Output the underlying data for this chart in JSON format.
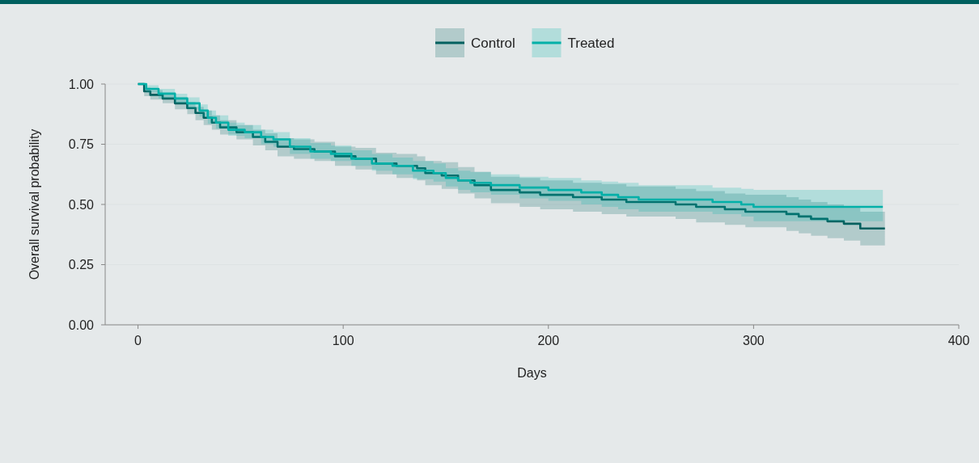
{
  "chart_data": {
    "type": "step",
    "xlabel": "Days",
    "ylabel": "Overall survival probability",
    "xlim": [
      -16,
      400
    ],
    "xticks": [
      0,
      100,
      200,
      300,
      400
    ],
    "ylim": [
      0,
      1
    ],
    "yticks": [
      {
        "value": 0,
        "label": "0.00"
      },
      {
        "value": 0.25,
        "label": "0.25"
      },
      {
        "value": 0.5,
        "label": "0.50"
      },
      {
        "value": 0.75,
        "label": "0.75"
      },
      {
        "value": 1,
        "label": "1.00"
      }
    ],
    "grid": "y",
    "legend": "top",
    "series": [
      {
        "name": "Control",
        "color": "#00605f",
        "x": [
          0,
          3,
          6,
          12,
          18,
          24,
          28,
          32,
          36,
          40,
          48,
          56,
          62,
          68,
          76,
          86,
          96,
          106,
          116,
          126,
          136,
          140,
          148,
          156,
          164,
          172,
          186,
          196,
          212,
          226,
          238,
          262,
          272,
          286,
          296,
          316,
          322,
          328,
          336,
          344,
          352,
          364
        ],
        "values": [
          1,
          0.97,
          0.955,
          0.94,
          0.92,
          0.9,
          0.88,
          0.86,
          0.84,
          0.82,
          0.8,
          0.78,
          0.76,
          0.74,
          0.73,
          0.72,
          0.7,
          0.69,
          0.67,
          0.66,
          0.65,
          0.63,
          0.62,
          0.6,
          0.58,
          0.56,
          0.55,
          0.54,
          0.53,
          0.52,
          0.51,
          0.5,
          0.49,
          0.48,
          0.47,
          0.46,
          0.45,
          0.44,
          0.43,
          0.42,
          0.4,
          0.4
        ],
        "lower": [
          1,
          0.95,
          0.935,
          0.92,
          0.895,
          0.875,
          0.85,
          0.83,
          0.81,
          0.79,
          0.77,
          0.745,
          0.725,
          0.7,
          0.69,
          0.68,
          0.66,
          0.645,
          0.625,
          0.61,
          0.6,
          0.58,
          0.565,
          0.545,
          0.525,
          0.505,
          0.49,
          0.48,
          0.47,
          0.46,
          0.45,
          0.44,
          0.425,
          0.415,
          0.405,
          0.39,
          0.38,
          0.37,
          0.36,
          0.35,
          0.33,
          0.33
        ],
        "upper": [
          1,
          0.985,
          0.975,
          0.96,
          0.945,
          0.925,
          0.905,
          0.89,
          0.87,
          0.85,
          0.83,
          0.81,
          0.795,
          0.775,
          0.77,
          0.76,
          0.74,
          0.735,
          0.715,
          0.71,
          0.7,
          0.68,
          0.675,
          0.655,
          0.635,
          0.615,
          0.61,
          0.6,
          0.59,
          0.585,
          0.575,
          0.565,
          0.555,
          0.545,
          0.54,
          0.53,
          0.52,
          0.51,
          0.5,
          0.49,
          0.47,
          0.47
        ]
      },
      {
        "name": "Treated",
        "color": "#00b0a8",
        "x": [
          0,
          4,
          10,
          18,
          24,
          30,
          34,
          38,
          44,
          52,
          60,
          66,
          74,
          84,
          94,
          104,
          114,
          124,
          134,
          144,
          150,
          156,
          162,
          172,
          186,
          200,
          216,
          226,
          234,
          244,
          280,
          294,
          300,
          363
        ],
        "values": [
          1,
          0.98,
          0.96,
          0.94,
          0.92,
          0.89,
          0.86,
          0.84,
          0.81,
          0.8,
          0.78,
          0.77,
          0.74,
          0.72,
          0.71,
          0.69,
          0.67,
          0.66,
          0.64,
          0.63,
          0.61,
          0.6,
          0.59,
          0.58,
          0.57,
          0.56,
          0.55,
          0.54,
          0.53,
          0.52,
          0.51,
          0.5,
          0.49,
          0.49
        ],
        "lower": [
          1,
          0.965,
          0.94,
          0.92,
          0.895,
          0.865,
          0.835,
          0.815,
          0.785,
          0.775,
          0.75,
          0.74,
          0.71,
          0.69,
          0.68,
          0.66,
          0.64,
          0.625,
          0.605,
          0.595,
          0.575,
          0.56,
          0.55,
          0.54,
          0.525,
          0.515,
          0.5,
          0.49,
          0.48,
          0.47,
          0.46,
          0.45,
          0.43,
          0.43
        ],
        "upper": [
          1,
          0.995,
          0.98,
          0.96,
          0.945,
          0.915,
          0.89,
          0.87,
          0.84,
          0.83,
          0.81,
          0.8,
          0.775,
          0.755,
          0.745,
          0.725,
          0.71,
          0.695,
          0.68,
          0.67,
          0.65,
          0.64,
          0.635,
          0.625,
          0.615,
          0.61,
          0.6,
          0.595,
          0.59,
          0.58,
          0.57,
          0.565,
          0.56,
          0.56
        ]
      }
    ]
  }
}
